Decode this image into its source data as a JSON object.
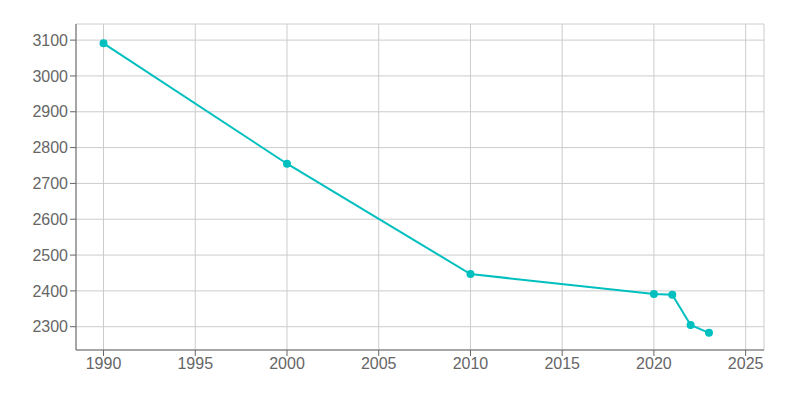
{
  "chart_data": {
    "type": "line",
    "x": [
      1990,
      2000,
      2010,
      2020,
      2021,
      2022,
      2023
    ],
    "values": [
      3091,
      2755,
      2447,
      2391,
      2389,
      2305,
      2283
    ],
    "color": "#00BFBF",
    "marker": "circle",
    "xlim": [
      1988.5,
      2026
    ],
    "ylim": [
      2235,
      3145
    ],
    "xticks": [
      1990,
      1995,
      2000,
      2005,
      2010,
      2015,
      2020,
      2025
    ],
    "yticks": [
      2300,
      2400,
      2500,
      2600,
      2700,
      2800,
      2900,
      3000,
      3100
    ],
    "grid": true
  }
}
